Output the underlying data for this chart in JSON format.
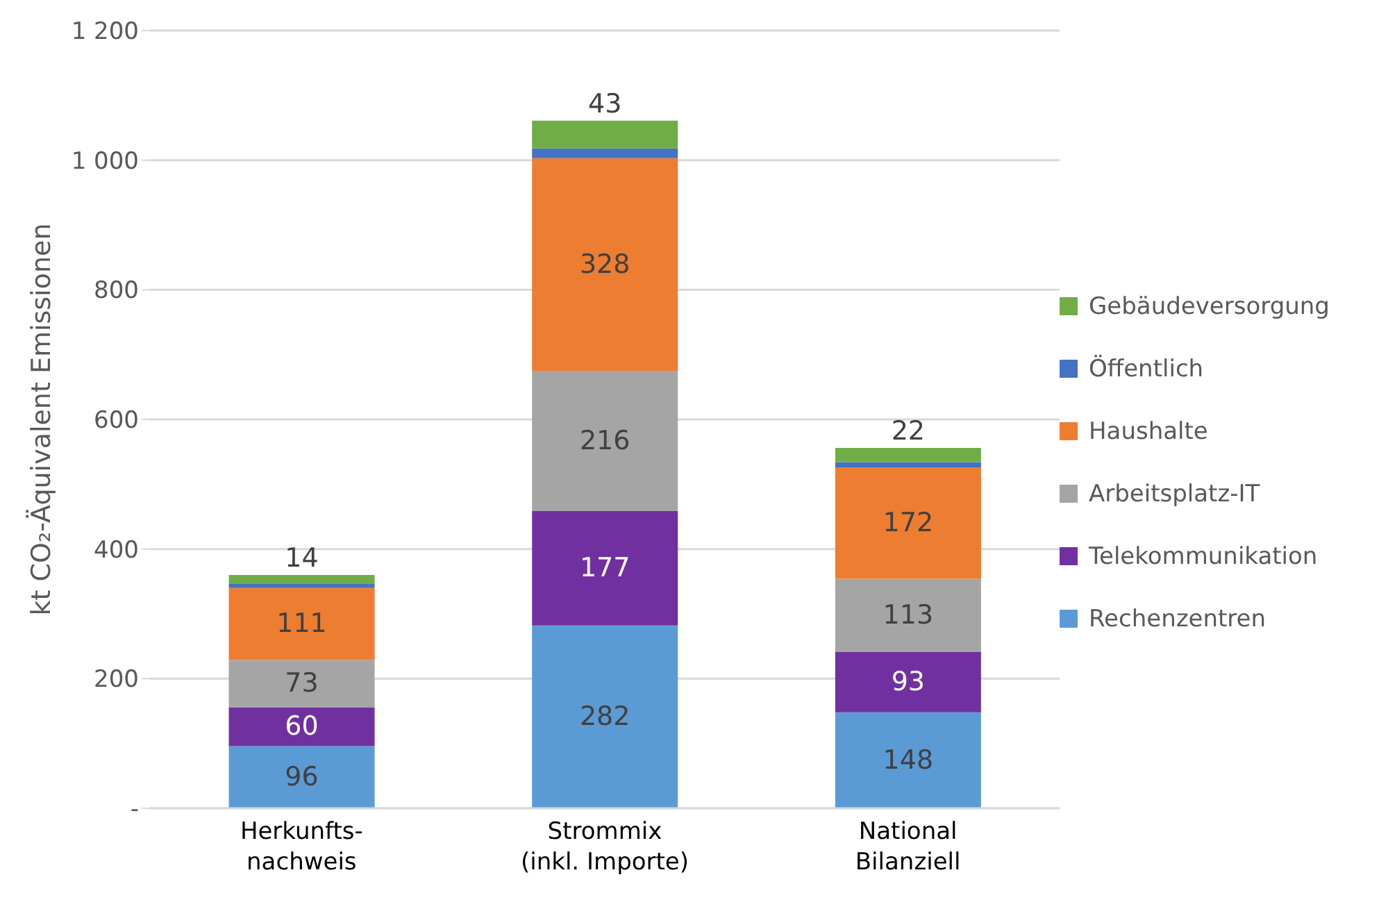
{
  "chart_data": {
    "type": "bar",
    "stacked": true,
    "ylabel": "kt CO₂-Äquivalent Emissionen",
    "categories": [
      "Herkunfts-\nnachweis",
      "Strommix\n(inkl. Importe)",
      "National\nBilanziell"
    ],
    "series": [
      {
        "name": "Rechenzentren",
        "color": "#5b9bd5",
        "values": [
          96,
          282,
          148
        ],
        "value_labels": [
          "96",
          "282",
          "148"
        ]
      },
      {
        "name": "Telekommunikation",
        "color": "#7030a0",
        "values": [
          60,
          177,
          93
        ],
        "value_labels": [
          "60",
          "177",
          "93"
        ]
      },
      {
        "name": "Arbeitsplatz-IT",
        "color": "#a5a5a5",
        "values": [
          73,
          216,
          113
        ],
        "value_labels": [
          "73",
          "216",
          "113"
        ]
      },
      {
        "name": "Haushalte",
        "color": "#ed7d31",
        "values": [
          111,
          328,
          172
        ],
        "value_labels": [
          "111",
          "328",
          "172"
        ]
      },
      {
        "name": "Öffentlich",
        "color": "#4472c4",
        "values": [
          6,
          15,
          8
        ],
        "value_labels": [
          null,
          null,
          null
        ]
      },
      {
        "name": "Gebäudeversorgung",
        "color": "#70ad47",
        "values": [
          14,
          43,
          22
        ],
        "value_labels": [
          "14",
          "43",
          "22"
        ]
      }
    ],
    "ylim": [
      0,
      1200
    ],
    "yticks": [
      {
        "value": 0,
        "label": "-"
      },
      200,
      400,
      600,
      800,
      {
        "value": 1000,
        "label": "1 000"
      },
      {
        "value": 1200,
        "label": "1 200"
      }
    ],
    "grid": "y",
    "legend": "right"
  }
}
